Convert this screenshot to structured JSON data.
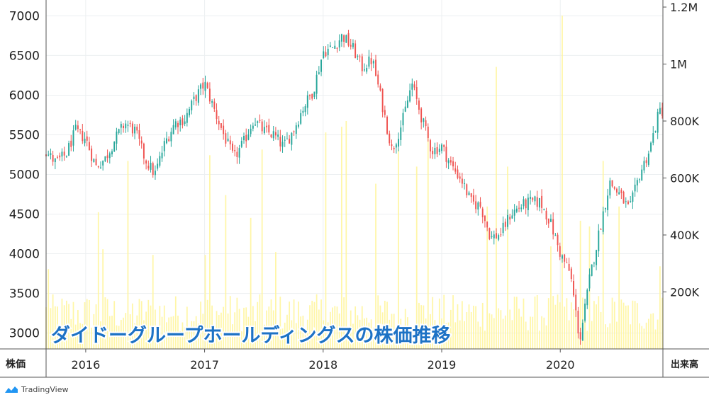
{
  "chart_data": {
    "type": "candlestick",
    "title": "ダイドーグループホールディングスの株価推移",
    "price_axis": {
      "label": "株価",
      "ticks": [
        3000,
        3500,
        4000,
        4500,
        5000,
        5500,
        6000,
        6500,
        7000
      ],
      "range": [
        2800,
        7200
      ]
    },
    "volume_axis": {
      "label": "出来高",
      "ticks": [
        "200K",
        "400K",
        "600K",
        "800K",
        "1M",
        "1.2M"
      ],
      "tick_values": [
        200000,
        400000,
        600000,
        800000,
        1000000,
        1200000
      ],
      "range": [
        0,
        1200000
      ]
    },
    "x_axis": {
      "ticks": [
        "2016",
        "2017",
        "2018",
        "2019",
        "2020"
      ]
    },
    "price_anchors": [
      [
        "2015-09-01",
        5280
      ],
      [
        "2015-10-01",
        5150
      ],
      [
        "2015-11-01",
        5250
      ],
      [
        "2015-12-01",
        5550
      ],
      [
        "2016-01-01",
        5450
      ],
      [
        "2016-02-01",
        5100
      ],
      [
        "2016-03-01",
        5200
      ],
      [
        "2016-04-01",
        5450
      ],
      [
        "2016-05-01",
        5650
      ],
      [
        "2016-06-01",
        5550
      ],
      [
        "2016-07-01",
        5200
      ],
      [
        "2016-08-01",
        5000
      ],
      [
        "2016-09-01",
        5400
      ],
      [
        "2016-10-01",
        5650
      ],
      [
        "2016-11-01",
        5700
      ],
      [
        "2016-12-01",
        5950
      ],
      [
        "2017-01-01",
        6150
      ],
      [
        "2017-02-01",
        5800
      ],
      [
        "2017-03-01",
        5500
      ],
      [
        "2017-04-01",
        5200
      ],
      [
        "2017-05-01",
        5400
      ],
      [
        "2017-06-01",
        5700
      ],
      [
        "2017-07-01",
        5550
      ],
      [
        "2017-08-01",
        5500
      ],
      [
        "2017-09-01",
        5350
      ],
      [
        "2017-10-01",
        5550
      ],
      [
        "2017-11-01",
        5850
      ],
      [
        "2017-12-01",
        6050
      ],
      [
        "2018-01-01",
        6550
      ],
      [
        "2018-02-01",
        6600
      ],
      [
        "2018-03-01",
        6750
      ],
      [
        "2018-04-01",
        6600
      ],
      [
        "2018-05-01",
        6350
      ],
      [
        "2018-06-01",
        6450
      ],
      [
        "2018-07-01",
        5900
      ],
      [
        "2018-08-01",
        5300
      ],
      [
        "2018-09-01",
        5650
      ],
      [
        "2018-10-01",
        6150
      ],
      [
        "2018-11-01",
        5700
      ],
      [
        "2018-12-01",
        5300
      ],
      [
        "2019-01-01",
        5350
      ],
      [
        "2019-02-01",
        5100
      ],
      [
        "2019-03-01",
        4950
      ],
      [
        "2019-04-01",
        4650
      ],
      [
        "2019-05-01",
        4600
      ],
      [
        "2019-06-01",
        4200
      ],
      [
        "2019-07-01",
        4250
      ],
      [
        "2019-08-01",
        4500
      ],
      [
        "2019-09-01",
        4600
      ],
      [
        "2019-10-01",
        4650
      ],
      [
        "2019-11-01",
        4650
      ],
      [
        "2019-12-01",
        4400
      ],
      [
        "2020-01-01",
        4000
      ],
      [
        "2020-02-01",
        3750
      ],
      [
        "2020-03-01",
        2900
      ],
      [
        "2020-04-01",
        3700
      ],
      [
        "2020-05-01",
        4300
      ],
      [
        "2020-06-01",
        4900
      ],
      [
        "2020-07-01",
        4750
      ],
      [
        "2020-08-01",
        4550
      ],
      [
        "2020-09-01",
        5000
      ],
      [
        "2020-10-01",
        5300
      ],
      [
        "2020-11-01",
        5800
      ]
    ],
    "volume_baseline": 120000,
    "volume_spikes": [
      [
        "2015-09-08",
        280000
      ],
      [
        "2016-02-06",
        480000
      ],
      [
        "2016-02-20",
        350000
      ],
      [
        "2016-05-10",
        660000
      ],
      [
        "2016-07-25",
        330000
      ],
      [
        "2017-01-03",
        330000
      ],
      [
        "2017-01-20",
        680000
      ],
      [
        "2017-03-05",
        540000
      ],
      [
        "2017-05-20",
        460000
      ],
      [
        "2017-06-25",
        700000
      ],
      [
        "2017-08-10",
        340000
      ],
      [
        "2018-01-10",
        760000
      ],
      [
        "2018-02-25",
        780000
      ],
      [
        "2018-03-15",
        800000
      ],
      [
        "2018-06-15",
        580000
      ],
      [
        "2018-08-20",
        700000
      ],
      [
        "2018-10-15",
        640000
      ],
      [
        "2018-11-20",
        760000
      ],
      [
        "2019-05-20",
        500000
      ],
      [
        "2019-06-20",
        990000
      ],
      [
        "2019-07-25",
        640000
      ],
      [
        "2019-12-01",
        360000
      ],
      [
        "2020-01-05",
        1170000
      ],
      [
        "2020-03-01",
        450000
      ],
      [
        "2020-04-01",
        430000
      ],
      [
        "2020-05-15",
        660000
      ],
      [
        "2020-07-01",
        500000
      ],
      [
        "2020-11-01",
        290000
      ]
    ],
    "colors": {
      "up": "#26a69a",
      "down": "#ef5350",
      "volume": "#fff59d",
      "title": "#1d72c5",
      "grid": "#eceff1"
    }
  },
  "branding": {
    "name": "TradingView"
  }
}
